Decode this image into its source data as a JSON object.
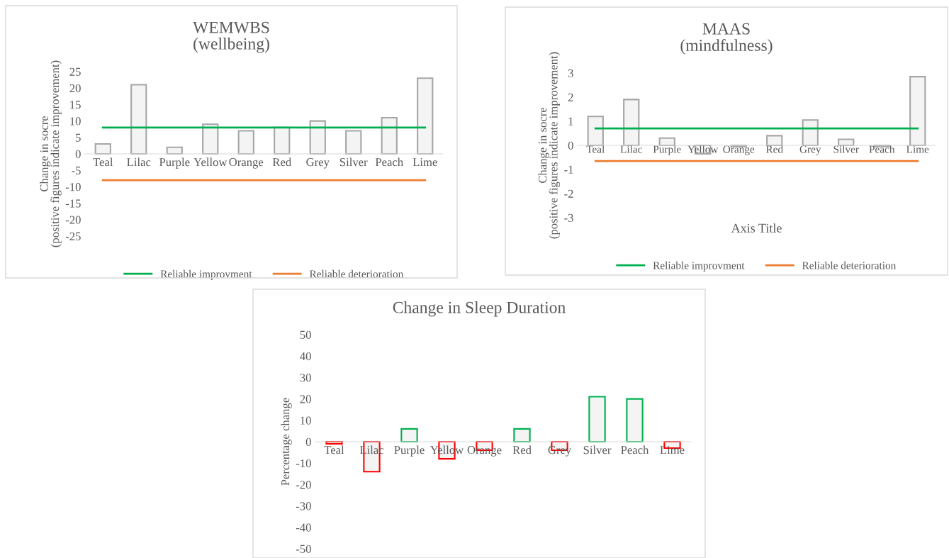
{
  "chart_data": [
    {
      "type": "bar",
      "title": "WEMWBS\n(wellbeing)",
      "ylabel": "Change in socre\n(positive figures indicate improvement)",
      "categories": [
        "Teal",
        "Lilac",
        "Purple",
        "Yellow",
        "Orange",
        "Red",
        "Grey",
        "Silver",
        "Peach",
        "Lime"
      ],
      "values": [
        3,
        21,
        2,
        9,
        7,
        8,
        10,
        7,
        11,
        23
      ],
      "color": "#a6a6a6",
      "ylim": [
        -25,
        25
      ],
      "yticks": [
        -25,
        -20,
        -15,
        -10,
        -5,
        0,
        5,
        10,
        15,
        20,
        25
      ],
      "grid": false,
      "legend": "bottom",
      "ref_lines": [
        {
          "axis": "y",
          "value": 8,
          "label": "Reliable improvment",
          "color": "#00b050"
        },
        {
          "axis": "y",
          "value": -8,
          "label": "Reliable deterioration",
          "color": "#ed7d31"
        }
      ]
    },
    {
      "type": "bar",
      "title": "MAAS\n(mindfulness)",
      "ylabel": "Change in socre\n(positive figures indicate improvement)",
      "xlabel": "Axis Title",
      "categories": [
        "Teal",
        "Lilac",
        "Purple",
        "Yellow",
        "Orange",
        "Red",
        "Grey",
        "Silver",
        "Peach",
        "Lime"
      ],
      "values": [
        1.2,
        1.9,
        0.3,
        -0.35,
        -0.05,
        0.4,
        1.05,
        0.25,
        -0.05,
        2.85
      ],
      "color": "#a6a6a6",
      "ylim": [
        -3,
        3
      ],
      "yticks": [
        -3,
        -2,
        -1,
        0,
        1,
        2,
        3
      ],
      "legend": "bottom",
      "ref_lines": [
        {
          "axis": "y",
          "value": 0.7,
          "label": "Reliable improvment",
          "color": "#00b050"
        },
        {
          "axis": "y",
          "value": -0.65,
          "label": "Reliable deterioration",
          "color": "#ed7d31"
        }
      ]
    },
    {
      "type": "bar",
      "title": "Change in Sleep Duration",
      "ylabel": "Percentage change",
      "categories": [
        "Teal",
        "Lilac",
        "Purple",
        "Yellow",
        "Orange",
        "Red",
        "Grey",
        "Silver",
        "Peach",
        "Lime"
      ],
      "values": [
        -1,
        -14,
        6,
        -8,
        -4,
        6,
        -4,
        21,
        20,
        -3
      ],
      "colors": [
        "#ff0000",
        "#ff0000",
        "#00b050",
        "#ff0000",
        "#ff0000",
        "#00b050",
        "#ff0000",
        "#00b050",
        "#00b050",
        "#ff0000"
      ],
      "ylim": [
        -50,
        50
      ],
      "yticks": [
        -50,
        -40,
        -30,
        -20,
        -10,
        0,
        10,
        20,
        30,
        40,
        50
      ],
      "grid": false,
      "legend": false
    }
  ]
}
